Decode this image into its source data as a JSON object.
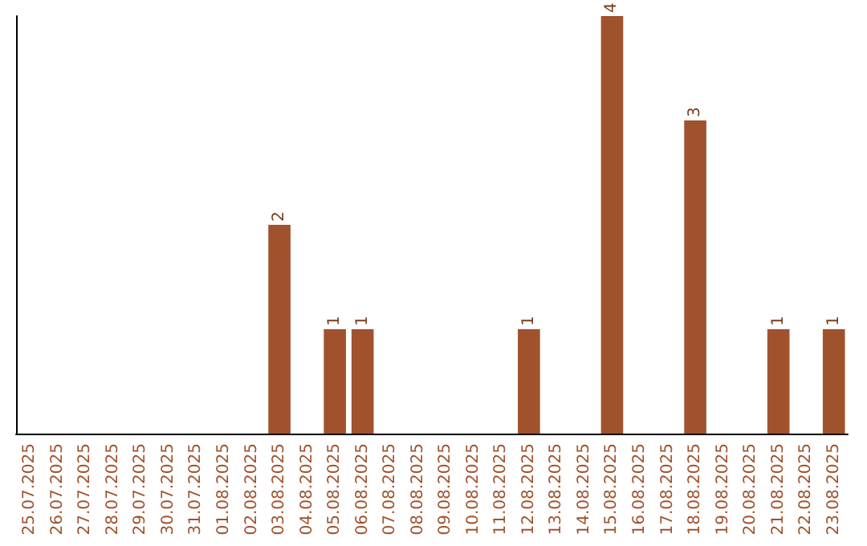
{
  "chart_data": {
    "type": "bar",
    "categories": [
      "25.07.2025",
      "26.07.2025",
      "27.07.2025",
      "28.07.2025",
      "29.07.2025",
      "30.07.2025",
      "31.07.2025",
      "01.08.2025",
      "02.08.2025",
      "03.08.2025",
      "04.08.2025",
      "05.08.2025",
      "06.08.2025",
      "07.08.2025",
      "08.08.2025",
      "09.08.2025",
      "10.08.2025",
      "11.08.2025",
      "12.08.2025",
      "13.08.2025",
      "14.08.2025",
      "15.08.2025",
      "16.08.2025",
      "17.08.2025",
      "18.08.2025",
      "19.08.2025",
      "20.08.2025",
      "21.08.2025",
      "22.08.2025",
      "23.08.2025"
    ],
    "values": [
      0,
      0,
      0,
      0,
      0,
      0,
      0,
      0,
      0,
      2,
      0,
      1,
      1,
      0,
      0,
      0,
      0,
      0,
      1,
      0,
      0,
      4,
      0,
      0,
      3,
      0,
      0,
      1,
      0,
      1
    ],
    "value_labels": [
      null,
      null,
      null,
      null,
      null,
      null,
      null,
      null,
      null,
      "2",
      null,
      "1",
      "1",
      null,
      null,
      null,
      null,
      null,
      "1",
      null,
      null,
      "4",
      null,
      null,
      "3",
      null,
      null,
      "1",
      null,
      "1"
    ],
    "color": "#a0522d"
  }
}
